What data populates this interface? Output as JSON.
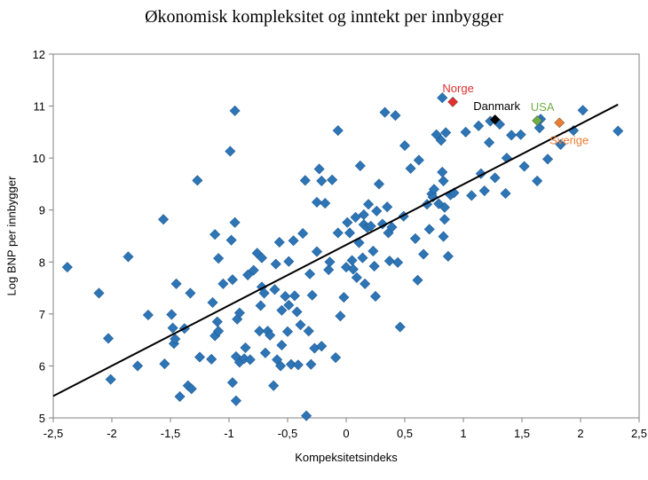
{
  "colors": {
    "point": "#2e75b6",
    "point_stroke": "#1f5d96",
    "trend": "#000000",
    "norge": "#e0312f",
    "danmark": "#000000",
    "usa": "#70ad47",
    "sverige": "#ed7d31"
  },
  "chart_data": {
    "type": "scatter",
    "title": "Økonomisk kompleksitet og inntekt per innbygger",
    "xlabel": "Kompeksitetsindeks",
    "ylabel": "Log BNP per innbygger",
    "xlim": [
      -2.5,
      2.5
    ],
    "ylim": [
      5,
      12
    ],
    "xticks": [
      -2.5,
      -2,
      -1.5,
      -1,
      -0.5,
      0,
      0.5,
      1,
      1.5,
      2,
      2.5
    ],
    "xtick_labels": [
      "-2,5",
      "-2",
      "-1,5",
      "-1",
      "-0,5",
      "0",
      "0,5",
      "1",
      "1,5",
      "2",
      "2,5"
    ],
    "yticks": [
      5,
      6,
      7,
      8,
      9,
      10,
      11,
      12
    ],
    "ytick_labels": [
      "5",
      "6",
      "7",
      "8",
      "9",
      "10",
      "11",
      "12"
    ],
    "grid": false,
    "legend": "none",
    "trend_line": {
      "x": [
        -2.5,
        2.32
      ],
      "y": [
        5.42,
        11.03
      ]
    },
    "highlights": [
      {
        "label": "Norge",
        "x": 0.91,
        "y": 11.08,
        "color_key": "norge",
        "label_pos": "above"
      },
      {
        "label": "Danmark",
        "x": 1.27,
        "y": 10.74,
        "color_key": "danmark",
        "label_pos": "above-left"
      },
      {
        "label": "USA",
        "x": 1.63,
        "y": 10.72,
        "color_key": "usa",
        "label_pos": "above"
      },
      {
        "label": "Sverige",
        "x": 1.82,
        "y": 10.68,
        "color_key": "sverige",
        "label_pos": "below"
      }
    ],
    "series": [
      {
        "points": [
          [
            -2.38,
            7.9
          ],
          [
            -2.11,
            7.4
          ],
          [
            -2.03,
            6.53
          ],
          [
            -2.01,
            5.74
          ],
          [
            -1.86,
            8.1
          ],
          [
            -1.78,
            6.0
          ],
          [
            -1.69,
            6.98
          ],
          [
            -1.56,
            8.82
          ],
          [
            -1.55,
            6.04
          ],
          [
            -1.49,
            6.99
          ],
          [
            -1.48,
            6.73
          ],
          [
            -1.47,
            6.43
          ],
          [
            -1.46,
            6.52
          ],
          [
            -1.45,
            7.58
          ],
          [
            -1.42,
            5.41
          ],
          [
            -1.38,
            6.72
          ],
          [
            -1.35,
            5.62
          ],
          [
            -1.33,
            7.4
          ],
          [
            -1.32,
            5.56
          ],
          [
            -1.27,
            9.57
          ],
          [
            -1.25,
            6.17
          ],
          [
            -1.15,
            6.13
          ],
          [
            -1.14,
            7.22
          ],
          [
            -1.12,
            8.53
          ],
          [
            -1.12,
            6.58
          ],
          [
            -1.1,
            6.85
          ],
          [
            -1.09,
            8.07
          ],
          [
            -1.09,
            6.67
          ],
          [
            -1.05,
            7.58
          ],
          [
            -0.99,
            10.13
          ],
          [
            -0.98,
            8.42
          ],
          [
            -0.97,
            5.68
          ],
          [
            -0.97,
            7.66
          ],
          [
            -0.95,
            10.91
          ],
          [
            -0.95,
            8.76
          ],
          [
            -0.94,
            6.18
          ],
          [
            -0.94,
            5.33
          ],
          [
            -0.93,
            6.9
          ],
          [
            -0.91,
            7.02
          ],
          [
            -0.91,
            6.07
          ],
          [
            -0.87,
            6.14
          ],
          [
            -0.86,
            6.35
          ],
          [
            -0.84,
            7.75
          ],
          [
            -0.82,
            6.12
          ],
          [
            -0.79,
            7.84
          ],
          [
            -0.76,
            8.17
          ],
          [
            -0.74,
            6.67
          ],
          [
            -0.73,
            7.16
          ],
          [
            -0.72,
            8.08
          ],
          [
            -0.72,
            7.52
          ],
          [
            -0.7,
            7.4
          ],
          [
            -0.69,
            6.25
          ],
          [
            -0.67,
            6.67
          ],
          [
            -0.65,
            6.59
          ],
          [
            -0.62,
            5.62
          ],
          [
            -0.61,
            7.47
          ],
          [
            -0.6,
            7.96
          ],
          [
            -0.59,
            6.12
          ],
          [
            -0.57,
            8.38
          ],
          [
            -0.56,
            6.0
          ],
          [
            -0.55,
            6.4
          ],
          [
            -0.55,
            7.07
          ],
          [
            -0.52,
            7.34
          ],
          [
            -0.5,
            6.66
          ],
          [
            -0.49,
            8.01
          ],
          [
            -0.49,
            7.17
          ],
          [
            -0.47,
            6.03
          ],
          [
            -0.45,
            8.41
          ],
          [
            -0.44,
            7.35
          ],
          [
            -0.42,
            7.04
          ],
          [
            -0.41,
            6.02
          ],
          [
            -0.39,
            6.79
          ],
          [
            -0.37,
            8.55
          ],
          [
            -0.35,
            9.57
          ],
          [
            -0.34,
            5.04
          ],
          [
            -0.32,
            6.67
          ],
          [
            -0.31,
            7.77
          ],
          [
            -0.3,
            6.03
          ],
          [
            -0.29,
            7.36
          ],
          [
            -0.27,
            6.34
          ],
          [
            -0.25,
            9.15
          ],
          [
            -0.25,
            8.2
          ],
          [
            -0.23,
            9.79
          ],
          [
            -0.21,
            9.56
          ],
          [
            -0.21,
            6.38
          ],
          [
            -0.18,
            9.13
          ],
          [
            -0.15,
            7.85
          ],
          [
            -0.14,
            8.0
          ],
          [
            -0.12,
            9.58
          ],
          [
            -0.09,
            6.16
          ],
          [
            -0.07,
            10.53
          ],
          [
            -0.07,
            8.56
          ],
          [
            -0.05,
            6.96
          ],
          [
            -0.02,
            7.32
          ],
          [
            0.0,
            7.9
          ],
          [
            0.01,
            8.76
          ],
          [
            0.03,
            8.56
          ],
          [
            0.05,
            8.03
          ],
          [
            0.06,
            7.86
          ],
          [
            0.08,
            8.86
          ],
          [
            0.09,
            7.7
          ],
          [
            0.11,
            8.37
          ],
          [
            0.12,
            9.85
          ],
          [
            0.14,
            8.08
          ],
          [
            0.15,
            8.91
          ],
          [
            0.15,
            8.72
          ],
          [
            0.16,
            7.58
          ],
          [
            0.18,
            8.66
          ],
          [
            0.19,
            9.11
          ],
          [
            0.21,
            8.69
          ],
          [
            0.23,
            8.21
          ],
          [
            0.24,
            7.92
          ],
          [
            0.25,
            7.34
          ],
          [
            0.26,
            8.98
          ],
          [
            0.28,
            9.5
          ],
          [
            0.31,
            8.73
          ],
          [
            0.33,
            10.88
          ],
          [
            0.35,
            9.06
          ],
          [
            0.36,
            8.56
          ],
          [
            0.37,
            8.02
          ],
          [
            0.39,
            8.67
          ],
          [
            0.42,
            10.82
          ],
          [
            0.44,
            7.99
          ],
          [
            0.46,
            6.75
          ],
          [
            0.49,
            8.88
          ],
          [
            0.5,
            10.24
          ],
          [
            0.55,
            9.8
          ],
          [
            0.59,
            8.45
          ],
          [
            0.61,
            7.65
          ],
          [
            0.62,
            9.96
          ],
          [
            0.66,
            8.15
          ],
          [
            0.69,
            9.11
          ],
          [
            0.71,
            8.63
          ],
          [
            0.73,
            9.31
          ],
          [
            0.74,
            9.25
          ],
          [
            0.75,
            9.4
          ],
          [
            0.77,
            10.45
          ],
          [
            0.79,
            9.12
          ],
          [
            0.81,
            10.34
          ],
          [
            0.82,
            11.16
          ],
          [
            0.82,
            9.73
          ],
          [
            0.83,
            9.56
          ],
          [
            0.83,
            8.49
          ],
          [
            0.84,
            8.82
          ],
          [
            0.84,
            9.05
          ],
          [
            0.85,
            10.49
          ],
          [
            0.87,
            8.11
          ],
          [
            0.89,
            9.29
          ],
          [
            0.92,
            9.33
          ],
          [
            1.02,
            10.5
          ],
          [
            1.07,
            9.28
          ],
          [
            1.13,
            10.62
          ],
          [
            1.15,
            9.7
          ],
          [
            1.18,
            9.37
          ],
          [
            1.22,
            10.3
          ],
          [
            1.23,
            10.71
          ],
          [
            1.27,
            9.62
          ],
          [
            1.31,
            10.65
          ],
          [
            1.36,
            9.32
          ],
          [
            1.37,
            10.0
          ],
          [
            1.41,
            10.44
          ],
          [
            1.49,
            10.45
          ],
          [
            1.52,
            9.84
          ],
          [
            1.63,
            9.56
          ],
          [
            1.65,
            10.58
          ],
          [
            1.66,
            10.75
          ],
          [
            1.72,
            9.98
          ],
          [
            1.83,
            10.26
          ],
          [
            1.94,
            10.53
          ],
          [
            2.02,
            10.92
          ],
          [
            2.32,
            10.52
          ]
        ]
      }
    ]
  }
}
